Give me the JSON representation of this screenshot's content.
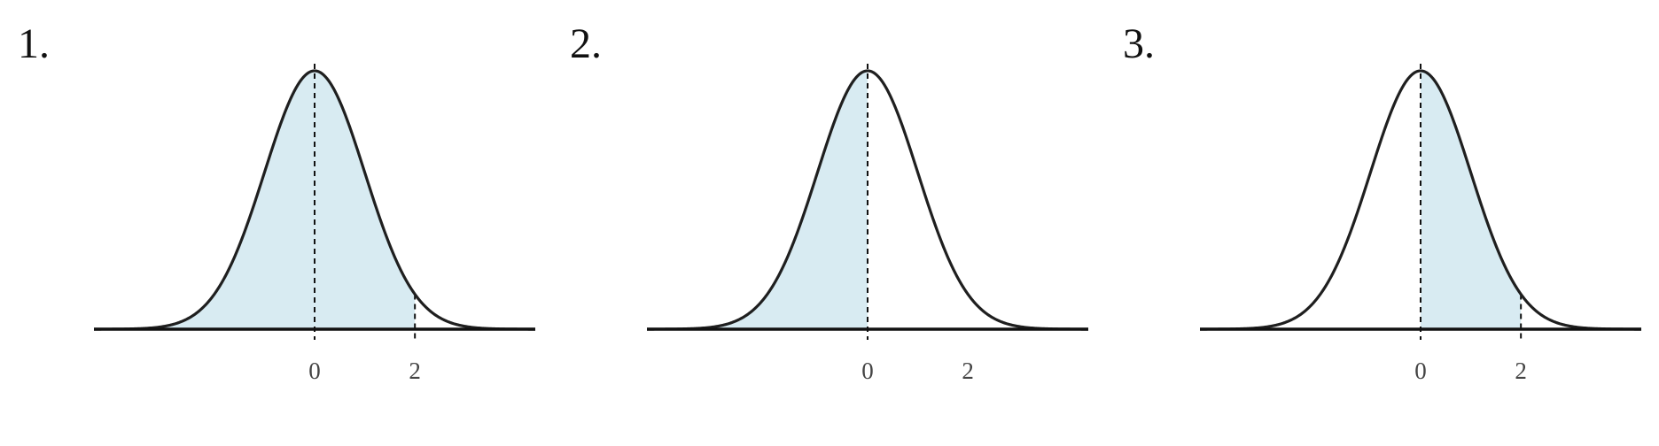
{
  "chart_data": [
    {
      "type": "area",
      "panel_label": "1.",
      "distribution": "normal",
      "mean": 0,
      "sd": 1,
      "xlim": [
        -4.4,
        4.4
      ],
      "x_ticks": [
        0,
        2
      ],
      "tick_labels": [
        "0",
        "2"
      ],
      "shaded_region": [
        -4.4,
        2
      ],
      "dashed_lines": [
        0,
        2
      ],
      "grid": false,
      "legend": "none"
    },
    {
      "type": "area",
      "panel_label": "2.",
      "distribution": "normal",
      "mean": 0,
      "sd": 1,
      "xlim": [
        -4.4,
        4.4
      ],
      "x_ticks": [
        0,
        2
      ],
      "tick_labels": [
        "0",
        "2"
      ],
      "shaded_region": [
        -4.4,
        0
      ],
      "dashed_lines": [
        0
      ],
      "grid": false,
      "legend": "none"
    },
    {
      "type": "area",
      "panel_label": "3.",
      "distribution": "normal",
      "mean": 0,
      "sd": 1,
      "xlim": [
        -4.4,
        4.4
      ],
      "x_ticks": [
        0,
        2
      ],
      "tick_labels": [
        "0",
        "2"
      ],
      "shaded_region": [
        0,
        2
      ],
      "dashed_lines": [
        0,
        2
      ],
      "grid": false,
      "legend": "none"
    }
  ],
  "colors": {
    "shade": "#d8ebf2",
    "curve": "#1f1f1f",
    "axis": "#111111",
    "dashed": "#111111",
    "tick_label": "#444444"
  }
}
